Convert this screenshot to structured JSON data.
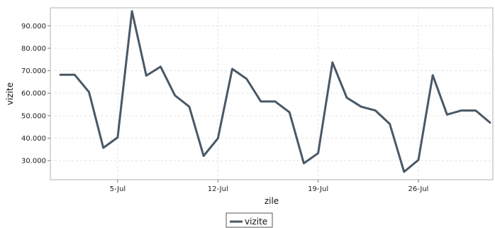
{
  "chart_data": {
    "type": "line",
    "title": "",
    "xlabel": "zile",
    "ylabel": "vizite",
    "x_tick_labels": [
      "5-Jul",
      "12-Jul",
      "19-Jul",
      "26-Jul"
    ],
    "x_tick_days": [
      5,
      12,
      19,
      26
    ],
    "x_range": [
      0.3,
      31.2
    ],
    "y_ticks": [
      30000,
      40000,
      50000,
      60000,
      70000,
      80000,
      90000
    ],
    "y_tick_labels": [
      "30.000",
      "40.000",
      "50.000",
      "60.000",
      "70.000",
      "80.000",
      "90.000"
    ],
    "ylim": [
      21500,
      98000
    ],
    "grid": true,
    "legend_position": "bottom-center",
    "series_color": "#4a5866",
    "series": [
      {
        "name": "vizite",
        "x": [
          1,
          2,
          3,
          4,
          5,
          6,
          7,
          8,
          9,
          10,
          11,
          12,
          13,
          14,
          15,
          16,
          17,
          18,
          19,
          20,
          21,
          22,
          23,
          24,
          25,
          26,
          27,
          28,
          29,
          30,
          31
        ],
        "values": [
          68200,
          68200,
          60500,
          35700,
          40300,
          96500,
          67800,
          71800,
          59000,
          54000,
          32100,
          39900,
          70800,
          66400,
          56300,
          56300,
          51500,
          28800,
          33300,
          73700,
          58000,
          54000,
          52300,
          46300,
          25000,
          30300,
          68000,
          50500,
          52300,
          52300,
          46900
        ]
      }
    ]
  }
}
